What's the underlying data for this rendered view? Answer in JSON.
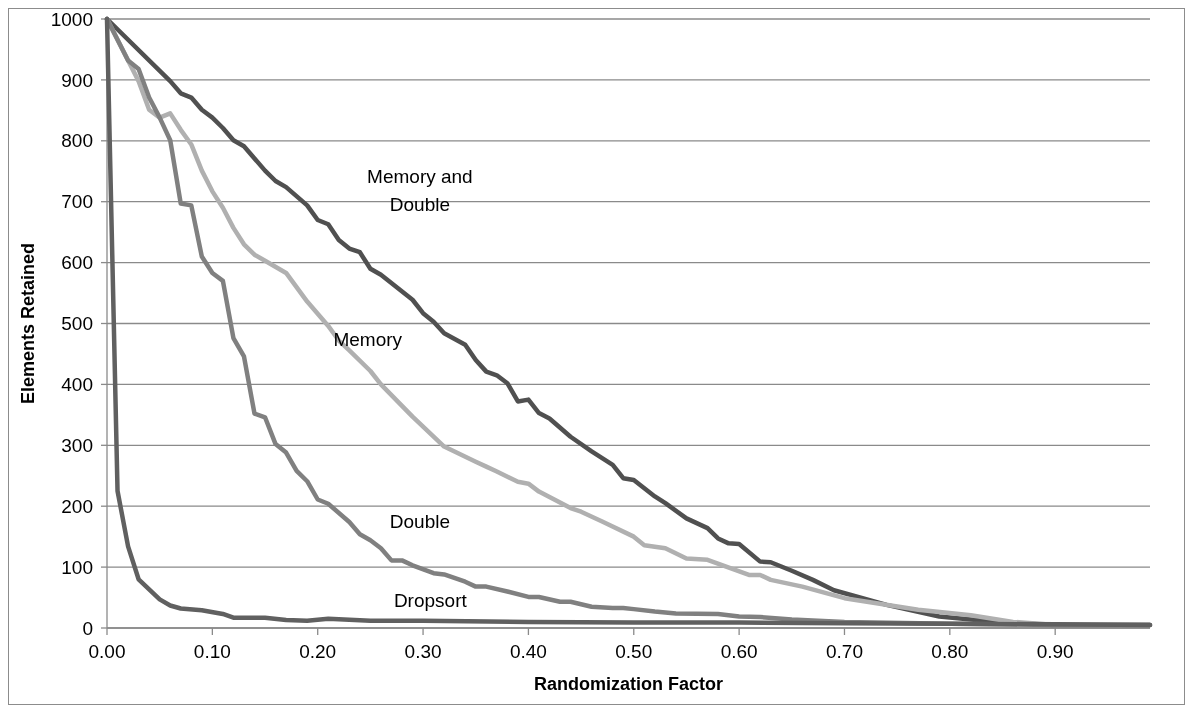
{
  "chart_data": {
    "type": "line",
    "xlabel": "Randomization Factor",
    "ylabel": "Elements Retained",
    "xlim": [
      0,
      0.99
    ],
    "xticks": [
      {
        "value": 0,
        "label": "0.00"
      },
      {
        "value": 0.1,
        "label": "0.10"
      },
      {
        "value": 0.2,
        "label": "0.20"
      },
      {
        "value": 0.3,
        "label": "0.30"
      },
      {
        "value": 0.4,
        "label": "0.40"
      },
      {
        "value": 0.5,
        "label": "0.50"
      },
      {
        "value": 0.6,
        "label": "0.60"
      },
      {
        "value": 0.7,
        "label": "0.70"
      },
      {
        "value": 0.8,
        "label": "0.80"
      },
      {
        "value": 0.9,
        "label": "0.90"
      }
    ],
    "ylim": [
      0,
      1000
    ],
    "yticks": [
      0,
      100,
      200,
      300,
      400,
      500,
      600,
      700,
      800,
      900,
      1000
    ],
    "grid": "y",
    "line_style": "solid",
    "series": [
      {
        "name": "Memory and Double",
        "color": "#505050",
        "x": [
          0,
          0.06,
          0.07,
          0.08,
          0.09,
          0.1,
          0.11,
          0.12,
          0.13,
          0.14,
          0.15,
          0.16,
          0.17,
          0.19,
          0.2,
          0.21,
          0.22,
          0.23,
          0.24,
          0.25,
          0.26,
          0.29,
          0.3,
          0.31,
          0.32,
          0.34,
          0.35,
          0.36,
          0.37,
          0.38,
          0.39,
          0.4,
          0.41,
          0.42,
          0.44,
          0.46,
          0.48,
          0.49,
          0.5,
          0.52,
          0.53,
          0.55,
          0.57,
          0.58,
          0.59,
          0.6,
          0.62,
          0.63,
          0.65,
          0.67,
          0.69,
          0.74,
          0.79,
          0.85,
          0.9,
          0.99
        ],
        "values": [
          1000,
          898,
          878,
          871,
          851,
          838,
          821,
          801,
          791,
          771,
          751,
          734,
          724,
          694,
          670,
          663,
          637,
          623,
          617,
          590,
          580,
          539,
          517,
          503,
          484,
          465,
          440,
          421,
          415,
          402,
          372,
          375,
          353,
          344,
          314,
          290,
          268,
          246,
          243,
          216,
          205,
          180,
          164,
          147,
          139,
          138,
          109,
          108,
          94,
          79,
          62,
          38,
          19,
          9,
          5,
          5
        ]
      },
      {
        "name": "Memory",
        "color": "#b0b0b0",
        "x": [
          0,
          0.03,
          0.04,
          0.05,
          0.06,
          0.07,
          0.08,
          0.09,
          0.1,
          0.11,
          0.12,
          0.13,
          0.14,
          0.15,
          0.17,
          0.19,
          0.21,
          0.22,
          0.23,
          0.25,
          0.26,
          0.29,
          0.32,
          0.35,
          0.36,
          0.37,
          0.39,
          0.4,
          0.41,
          0.44,
          0.45,
          0.47,
          0.5,
          0.51,
          0.53,
          0.55,
          0.57,
          0.61,
          0.62,
          0.63,
          0.66,
          0.7,
          0.77,
          0.82,
          0.86,
          0.9,
          0.99
        ],
        "values": [
          1000,
          898,
          851,
          838,
          845,
          818,
          794,
          751,
          717,
          690,
          657,
          630,
          613,
          603,
          583,
          536,
          496,
          472,
          456,
          422,
          400,
          347,
          298,
          273,
          265,
          257,
          240,
          237,
          224,
          197,
          191,
          175,
          150,
          136,
          131,
          114,
          112,
          87,
          87,
          79,
          68,
          49,
          30,
          21,
          10,
          5,
          5
        ]
      },
      {
        "name": "Double",
        "color": "#808080",
        "x": [
          0,
          0.02,
          0.03,
          0.04,
          0.05,
          0.06,
          0.07,
          0.08,
          0.09,
          0.1,
          0.11,
          0.12,
          0.13,
          0.14,
          0.15,
          0.16,
          0.17,
          0.18,
          0.19,
          0.2,
          0.21,
          0.23,
          0.24,
          0.25,
          0.26,
          0.27,
          0.28,
          0.29,
          0.31,
          0.32,
          0.34,
          0.35,
          0.36,
          0.38,
          0.4,
          0.41,
          0.43,
          0.44,
          0.46,
          0.48,
          0.49,
          0.5,
          0.52,
          0.54,
          0.58,
          0.6,
          0.62,
          0.65,
          0.7,
          0.8,
          0.9,
          0.99
        ],
        "values": [
          1000,
          932,
          918,
          871,
          838,
          801,
          697,
          694,
          610,
          583,
          570,
          476,
          446,
          352,
          346,
          302,
          288,
          258,
          241,
          211,
          204,
          174,
          154,
          144,
          131,
          111,
          111,
          103,
          90,
          88,
          76,
          68,
          68,
          60,
          51,
          51,
          43,
          43,
          35,
          33,
          33,
          31,
          27,
          24,
          23,
          19,
          18,
          14,
          10,
          7,
          5,
          5
        ]
      },
      {
        "name": "Dropsort",
        "color": "#606060",
        "x": [
          0,
          0.01,
          0.02,
          0.03,
          0.05,
          0.06,
          0.07,
          0.09,
          0.11,
          0.12,
          0.15,
          0.17,
          0.19,
          0.21,
          0.25,
          0.3,
          0.4,
          0.5,
          0.6,
          0.7,
          0.8,
          0.9,
          0.99
        ],
        "values": [
          1000,
          225,
          134,
          80,
          47,
          37,
          32,
          29,
          23,
          17,
          17,
          13,
          12,
          15,
          12,
          12,
          10,
          9,
          9,
          8,
          7,
          6,
          5
        ]
      }
    ]
  }
}
